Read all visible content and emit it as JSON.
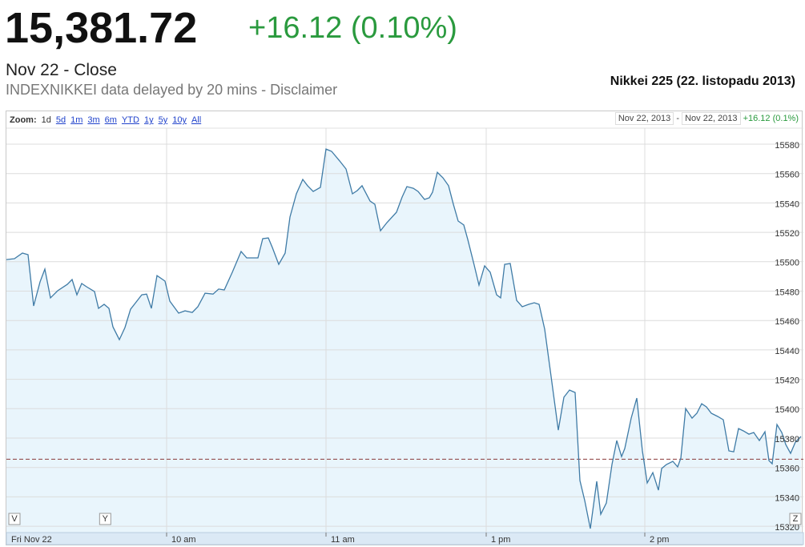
{
  "header": {
    "price": "15,381.72",
    "change": "+16.12 (0.10%)",
    "status": "Nov 22 - Close",
    "source": "INDEXNIKKEI data delayed by 20 mins - Disclaimer",
    "chart_heading": "Nikkei 225 (22. listopadu 2013)"
  },
  "toolbar": {
    "zoom_label": "Zoom:",
    "zoom_options": [
      "1d",
      "5d",
      "1m",
      "3m",
      "6m",
      "YTD",
      "1y",
      "5y",
      "10y",
      "All"
    ],
    "range_start": "Nov 22, 2013",
    "range_separator": "-",
    "range_end": "Nov 22, 2013",
    "range_change": "+16.12 (0.1%)"
  },
  "chart_data": {
    "type": "line",
    "x": [
      0,
      3,
      6,
      8.1,
      10.2,
      12.6,
      14.4,
      16.5,
      19.2,
      22.8,
      24.6,
      26.4,
      28.2,
      30,
      33,
      34.5,
      36.6,
      38.4,
      39.9,
      42.3,
      44.4,
      46.5,
      48.6,
      50.7,
      52.5,
      54.3,
      56.4,
      59.4,
      61.2,
      64.5,
      66.9,
      69.6,
      71.7,
      74.4,
      77.4,
      79.5,
      81.6,
      84.6,
      87.9,
      90,
      94.2,
      96,
      98.1,
      99.6,
      102,
      104.4,
      106.2,
      108.6,
      111,
      112.8,
      114.9,
      117.6,
      119.7,
      121.8,
      124.8,
      127.2,
      129.6,
      131.4,
      133.2,
      136.2,
      138,
      140.1,
      142.5,
      146.1,
      148.2,
      150,
      152.4,
      154.2,
      156.6,
      158.4,
      159.6,
      161.4,
      163.5,
      165.6,
      167.4,
      169.2,
      171.3,
      172.8,
      175.2,
      177,
      179.1,
      181.2,
      183.6,
      185.1,
      186.6,
      188.7,
      191.1,
      193.2,
      195.6,
      197.7,
      199.5,
      201.6,
      204,
      206.7,
      208.8,
      210.9,
      213,
      214.8,
      216.6,
      218.7,
      221.1,
      222.6,
      224.7,
      226.8,
      228.6,
      230.4,
      231.6,
      234,
      236.1,
      238.2,
      240,
      242.1,
      244.2,
      245.4,
      247.2,
      249.6,
      251.4,
      252.6,
      254.4,
      256.8,
      258.6,
      260.4,
      262.2,
      264,
      266.4,
      268.5,
      270.6,
      272.4,
      274.2,
      276,
      278.1,
      279.9,
      282,
      284.1,
      285.6,
      286.8,
      288.6,
      290.4,
      291.9,
      293.7,
      295.5,
      297.6
    ],
    "series": [
      {
        "color": "#3f7ba6",
        "fill": "#e9f5fc",
        "values": [
          15501.5,
          15502.1,
          15505.9,
          15504.8,
          15469.9,
          15486.3,
          15495,
          15475.4,
          15480.3,
          15484.6,
          15487.9,
          15477.5,
          15485.2,
          15483,
          15479.7,
          15468.3,
          15471,
          15468.3,
          15455.7,
          15447,
          15455.2,
          15467.7,
          15472.6,
          15477.5,
          15478,
          15468.3,
          15490.6,
          15486.8,
          15473.2,
          15465,
          15466.6,
          15465.5,
          15469.4,
          15478.6,
          15478,
          15481.4,
          15480.8,
          15492.8,
          15507,
          15502.6,
          15502.6,
          15515.7,
          15516.2,
          15509.7,
          15498.2,
          15505.9,
          15530.4,
          15546.2,
          15556,
          15551.7,
          15547.8,
          15550.6,
          15576.7,
          15575.1,
          15568.6,
          15563.1,
          15546.2,
          15548.4,
          15551.7,
          15541.3,
          15539.1,
          15521.1,
          15526.6,
          15533.7,
          15544,
          15551.1,
          15550,
          15547.8,
          15542.4,
          15543.5,
          15547.3,
          15560.9,
          15557.1,
          15551.7,
          15539.1,
          15527.7,
          15525,
          15515.1,
          15497.7,
          15484.1,
          15497.2,
          15492.8,
          15477.5,
          15475.4,
          15498.2,
          15498.8,
          15473.7,
          15469.4,
          15471,
          15472.1,
          15471,
          15454.1,
          15422,
          15385.4,
          15407.8,
          15412.7,
          15411,
          15351.1,
          15337.5,
          15318.4,
          15350.6,
          15328.2,
          15335.8,
          15362,
          15378.3,
          15367.4,
          15372.9,
          15393.6,
          15407.2,
          15371.3,
          15349.5,
          15356.5,
          15344.6,
          15359.3,
          15362,
          15364.2,
          15360.4,
          15366.4,
          15400.1,
          15393.6,
          15396.9,
          15403.4,
          15401.2,
          15396.9,
          15394.7,
          15392.5,
          15371.3,
          15370.7,
          15386.5,
          15384.9,
          15382.7,
          15383.8,
          15378.3,
          15384.3,
          15364.7,
          15362.5,
          15389.2,
          15383.8,
          15375.6,
          15369.6,
          15377.3,
          15381.1
        ]
      }
    ],
    "reference_line": {
      "value": 15365.6,
      "color": "#8b3a3a"
    },
    "flags": [
      {
        "label": "V",
        "x": 3
      },
      {
        "label": "Y",
        "x": 37
      },
      {
        "label": "Z",
        "x": 295.5
      }
    ],
    "xlim": [
      0,
      298.5
    ],
    "xticks": [
      {
        "value": 0,
        "label": "Fri Nov 22"
      },
      {
        "value": 60,
        "label": "10 am"
      },
      {
        "value": 119.7,
        "label": "11 am"
      },
      {
        "value": 179.7,
        "label": "1 pm"
      },
      {
        "value": 239.1,
        "label": "2 pm"
      }
    ],
    "ylim": [
      15315.7,
      15590.9
    ],
    "yticks": [
      15320,
      15340,
      15360,
      15380,
      15400,
      15420,
      15440,
      15460,
      15480,
      15500,
      15520,
      15540,
      15560,
      15580
    ],
    "grid": true
  }
}
